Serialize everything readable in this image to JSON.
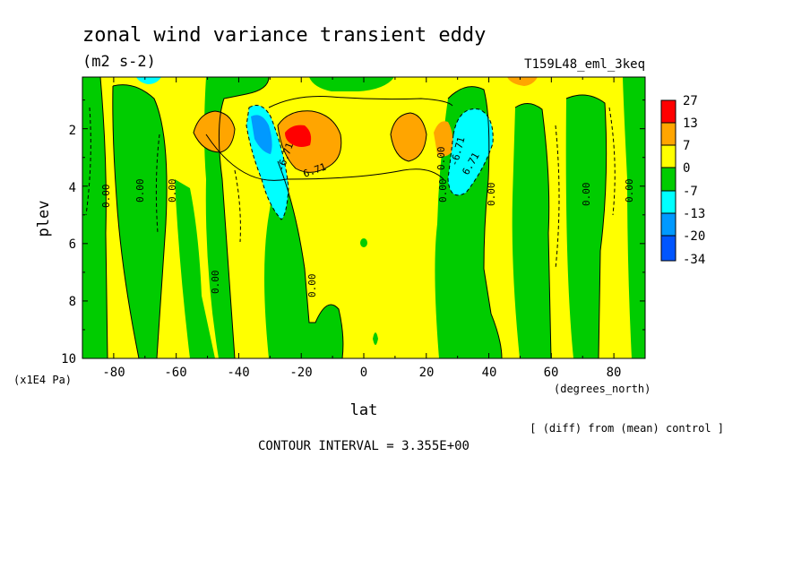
{
  "chart_data": {
    "type": "heatmap",
    "title": "zonal wind variance transient eddy",
    "units": "(m2 s-2)",
    "experiment": "T159L48_eml_3keq",
    "xlabel": "lat",
    "x_units": "(degrees_north)",
    "ylabel": "plev",
    "y_units": "(x1E4 Pa)",
    "x_ticks": [
      "-80",
      "-60",
      "-40",
      "-20",
      "0",
      "20",
      "40",
      "60",
      "80"
    ],
    "y_ticks": [
      "2",
      "4",
      "6",
      "8",
      "10"
    ],
    "xlim": [
      -90,
      90
    ],
    "ylim": [
      10,
      0.2
    ],
    "note": "[ (diff) from (mean) control ]",
    "contour_interval": "CONTOUR INTERVAL = 3.355E+00",
    "colorbar": {
      "labels": [
        "27",
        "13",
        "7",
        "0",
        "-7",
        "-13",
        "-20",
        "-34"
      ],
      "colors": [
        "#ff0000",
        "#ffa500",
        "#ffff00",
        "#00cc00",
        "#00ffff",
        "#0099ff",
        "#0055ff"
      ]
    },
    "contour_labels": [
      "0.00",
      "0.00",
      "0.00",
      "0.00",
      "0.00",
      "0.00",
      "0.00",
      "0.00",
      "0.00",
      "0.00",
      "6.71",
      "6.71",
      "-6.71",
      "-6.71"
    ],
    "colors": {
      "strong_positive": "#ff0000",
      "moderate_positive": "#ffa500",
      "weak_positive": "#ffff00",
      "weak_negative": "#00cc00",
      "moderate_negative": "#00ffff",
      "strong_negative": "#0099ff",
      "extreme_negative": "#0055ff"
    }
  }
}
